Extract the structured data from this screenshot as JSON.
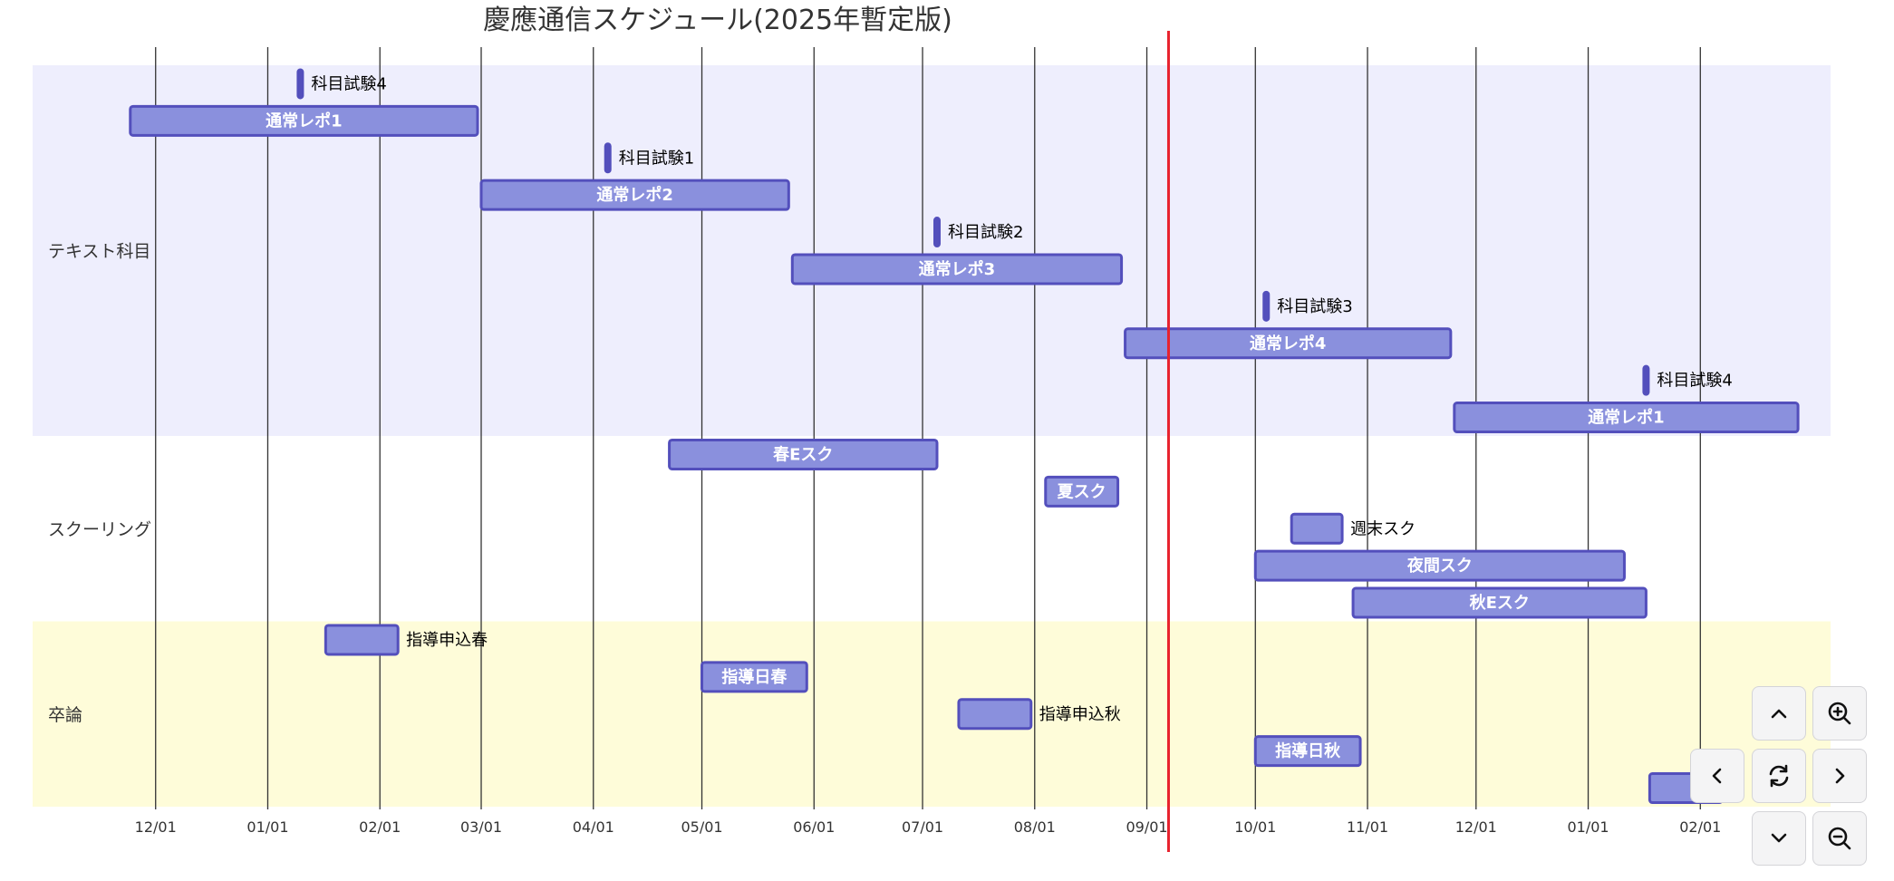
{
  "chart_data": {
    "type": "gantt",
    "title": "慶應通信スケジュール(2025年暫定版)",
    "x_domain": [
      "2024-10-28",
      "2026-03-09"
    ],
    "today": "2025-09-07",
    "x_ticks": [
      "2024-12-01",
      "2025-01-01",
      "2025-02-01",
      "2025-03-01",
      "2025-04-01",
      "2025-05-01",
      "2025-06-01",
      "2025-07-01",
      "2025-08-01",
      "2025-09-01",
      "2025-10-01",
      "2025-11-01",
      "2025-12-01",
      "2026-01-01",
      "2026-02-01"
    ],
    "x_tick_labels": [
      "12/01",
      "01/01",
      "02/01",
      "03/01",
      "04/01",
      "05/01",
      "06/01",
      "07/01",
      "08/01",
      "09/01",
      "10/01",
      "11/01",
      "12/01",
      "01/01",
      "02/01"
    ],
    "sections": [
      {
        "name": "テキスト科目",
        "color": "#eeeefd",
        "tasks": [
          {
            "name": "科目試験4",
            "start": "2025-01-10",
            "end": "2025-01-11",
            "milestone": true
          },
          {
            "name": "通常レポ1",
            "start": "2024-11-24",
            "end": "2025-02-28"
          },
          {
            "name": "科目試験1",
            "start": "2025-04-05",
            "end": "2025-04-06",
            "milestone": true
          },
          {
            "name": "通常レポ2",
            "start": "2025-03-01",
            "end": "2025-05-25"
          },
          {
            "name": "科目試験2",
            "start": "2025-07-05",
            "end": "2025-07-06",
            "milestone": true
          },
          {
            "name": "通常レポ3",
            "start": "2025-05-26",
            "end": "2025-08-25"
          },
          {
            "name": "科目試験3",
            "start": "2025-10-04",
            "end": "2025-10-05",
            "milestone": true
          },
          {
            "name": "通常レポ4",
            "start": "2025-08-26",
            "end": "2025-11-24"
          },
          {
            "name": "科目試験4",
            "start": "2026-01-17",
            "end": "2026-01-18",
            "milestone": true
          },
          {
            "name": "通常レポ1",
            "start": "2025-11-25",
            "end": "2026-02-28"
          }
        ]
      },
      {
        "name": "スクーリング",
        "color": "#ffffff",
        "tasks": [
          {
            "name": "春Eスク",
            "start": "2025-04-22",
            "end": "2025-07-05"
          },
          {
            "name": "夏スク",
            "start": "2025-08-04",
            "end": "2025-08-24"
          },
          {
            "name": "週末スク",
            "start": "2025-10-11",
            "end": "2025-10-25"
          },
          {
            "name": "夜間スク",
            "start": "2025-10-01",
            "end": "2026-01-11"
          },
          {
            "name": "秋Eスク",
            "start": "2025-10-28",
            "end": "2026-01-17"
          }
        ]
      },
      {
        "name": "卒論",
        "color": "#fefcd9",
        "tasks": [
          {
            "name": "指導申込春",
            "start": "2025-01-17",
            "end": "2025-02-06"
          },
          {
            "name": "指導日春",
            "start": "2025-05-01",
            "end": "2025-05-30"
          },
          {
            "name": "指導申込秋",
            "start": "2025-07-11",
            "end": "2025-07-31"
          },
          {
            "name": "指導日秋",
            "start": "2025-10-01",
            "end": "2025-10-30"
          },
          {
            "name": "",
            "start": "2026-01-18",
            "end": "2026-02-07"
          }
        ]
      }
    ]
  },
  "controls": [
    {
      "name": "pan-up-button",
      "icon": "chevron-up-icon"
    },
    {
      "name": "zoom-in-button",
      "icon": "zoom-in-icon"
    },
    {
      "name": "pan-left-button",
      "icon": "chevron-left-icon"
    },
    {
      "name": "reset-view-button",
      "icon": "refresh-icon"
    },
    {
      "name": "pan-right-button",
      "icon": "chevron-right-icon"
    },
    {
      "name": "pan-down-button",
      "icon": "chevron-down-icon"
    },
    {
      "name": "zoom-out-button",
      "icon": "zoom-out-icon"
    }
  ]
}
